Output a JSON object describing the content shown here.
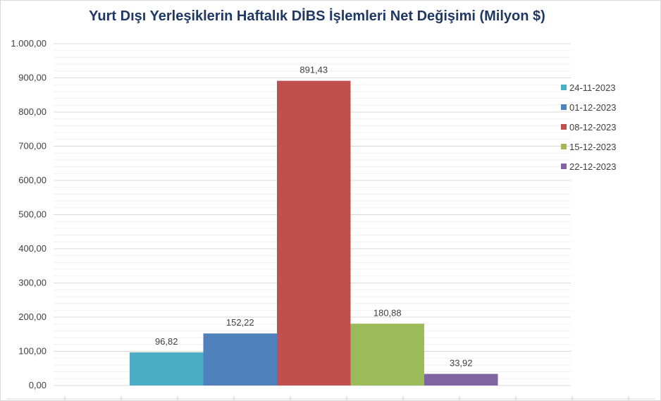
{
  "chart_data": {
    "type": "bar",
    "title": "Yurt Dışı Yerleşiklerin Haftalık DİBS İşlemleri Net Değişimi (Milyon $)",
    "xlabel": "",
    "ylabel": "",
    "ylim": [
      0,
      1000
    ],
    "yticks": [
      "0,00",
      "100,00",
      "200,00",
      "300,00",
      "400,00",
      "500,00",
      "600,00",
      "700,00",
      "800,00",
      "900,00",
      "1.000,00"
    ],
    "grid": true,
    "legend_position": "right",
    "series": [
      {
        "name": "24-11-2023",
        "value": 96.82,
        "label": "96,82",
        "color": "#4bacc6"
      },
      {
        "name": "01-12-2023",
        "value": 152.22,
        "label": "152,22",
        "color": "#4f81bd"
      },
      {
        "name": "08-12-2023",
        "value": 891.43,
        "label": "891,43",
        "color": "#c0504d"
      },
      {
        "name": "15-12-2023",
        "value": 180.88,
        "label": "180,88",
        "color": "#9bbb59"
      },
      {
        "name": "22-12-2023",
        "value": 33.92,
        "label": "33,92",
        "color": "#8064a2"
      }
    ]
  }
}
